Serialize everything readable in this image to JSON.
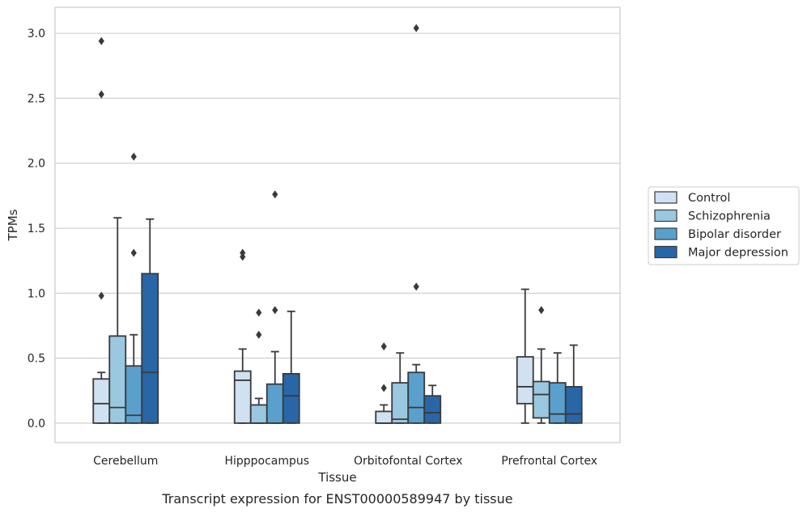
{
  "chart_data": {
    "type": "box",
    "title": "",
    "caption": "Transcript expression for ENST00000589947 by tissue",
    "xlabel": "Tissue",
    "ylabel": "TPMs",
    "ylim": [
      -0.15,
      3.2
    ],
    "yticks": [
      0.0,
      0.5,
      1.0,
      1.5,
      2.0,
      2.5,
      3.0
    ],
    "ytick_labels": [
      "0.0",
      "0.5",
      "1.0",
      "1.5",
      "2.0",
      "2.5",
      "3.0"
    ],
    "grid": "horizontal",
    "legend_position": "right",
    "categories": [
      "Cerebellum",
      "Hipppocampus",
      "Orbitofontal Cortex",
      "Prefrontal Cortex"
    ],
    "series": [
      {
        "name": "Control",
        "color": "#d0e1f2",
        "boxes": [
          {
            "whislo": 0.0,
            "q1": 0.0,
            "med": 0.15,
            "q3": 0.34,
            "whishi": 0.39,
            "fliers": [
              0.98,
              2.53,
              2.94
            ]
          },
          {
            "whislo": 0.0,
            "q1": 0.0,
            "med": 0.33,
            "q3": 0.4,
            "whishi": 0.57,
            "fliers": [
              1.28,
              1.31
            ]
          },
          {
            "whislo": 0.0,
            "q1": 0.0,
            "med": 0.0,
            "q3": 0.09,
            "whishi": 0.14,
            "fliers": [
              0.27,
              0.59
            ]
          },
          {
            "whislo": 0.0,
            "q1": 0.15,
            "med": 0.28,
            "q3": 0.51,
            "whishi": 1.03,
            "fliers": []
          }
        ]
      },
      {
        "name": "Schizophrenia",
        "color": "#9ac8e0",
        "boxes": [
          {
            "whislo": 0.0,
            "q1": 0.0,
            "med": 0.12,
            "q3": 0.67,
            "whishi": 1.58,
            "fliers": []
          },
          {
            "whislo": 0.0,
            "q1": 0.0,
            "med": 0.0,
            "q3": 0.14,
            "whishi": 0.19,
            "fliers": [
              0.68,
              0.85
            ]
          },
          {
            "whislo": 0.0,
            "q1": 0.0,
            "med": 0.03,
            "q3": 0.31,
            "whishi": 0.54,
            "fliers": []
          },
          {
            "whislo": 0.0,
            "q1": 0.04,
            "med": 0.22,
            "q3": 0.32,
            "whishi": 0.57,
            "fliers": [
              0.87
            ]
          }
        ]
      },
      {
        "name": "Bipolar disorder",
        "color": "#5aa0cd",
        "boxes": [
          {
            "whislo": 0.0,
            "q1": 0.0,
            "med": 0.06,
            "q3": 0.44,
            "whishi": 0.68,
            "fliers": [
              1.31,
              2.05
            ]
          },
          {
            "whislo": 0.0,
            "q1": 0.0,
            "med": 0.0,
            "q3": 0.3,
            "whishi": 0.55,
            "fliers": [
              0.87,
              1.76
            ]
          },
          {
            "whislo": 0.0,
            "q1": 0.0,
            "med": 0.12,
            "q3": 0.39,
            "whishi": 0.45,
            "fliers": [
              1.05,
              3.04
            ]
          },
          {
            "whislo": 0.0,
            "q1": 0.0,
            "med": 0.07,
            "q3": 0.31,
            "whishi": 0.54,
            "fliers": []
          }
        ]
      },
      {
        "name": "Major depression",
        "color": "#2866a8",
        "boxes": [
          {
            "whislo": 0.0,
            "q1": 0.0,
            "med": 0.39,
            "q3": 1.15,
            "whishi": 1.57,
            "fliers": []
          },
          {
            "whislo": 0.0,
            "q1": 0.0,
            "med": 0.21,
            "q3": 0.38,
            "whishi": 0.86,
            "fliers": []
          },
          {
            "whislo": 0.0,
            "q1": 0.0,
            "med": 0.08,
            "q3": 0.21,
            "whishi": 0.29,
            "fliers": []
          },
          {
            "whislo": 0.0,
            "q1": 0.0,
            "med": 0.07,
            "q3": 0.28,
            "whishi": 0.6,
            "fliers": []
          }
        ]
      }
    ]
  }
}
